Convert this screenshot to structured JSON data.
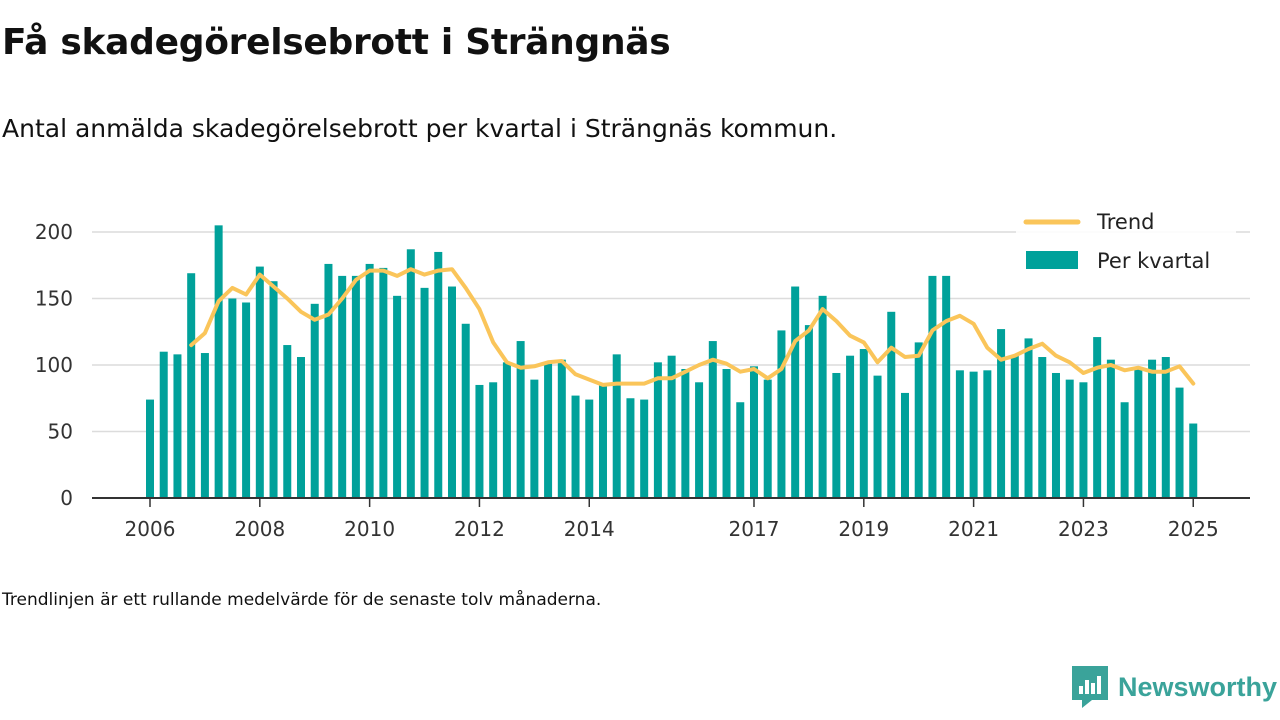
{
  "header": {
    "title": "Få skadegörelsebrott i Strängnäs",
    "subtitle": "Antal anmälda skadegörelsebrott per kvartal i Strängnäs kommun."
  },
  "footer": {
    "note": "Trendlinjen är ett rullande medelvärde för de senaste tolv månaderna.",
    "logo_text": "Newsworthy"
  },
  "colors": {
    "bar": "#00a19a",
    "trend": "#fac55a",
    "axis": "#333333",
    "grid": "#dcdcdc",
    "logo": "#3aa39a"
  },
  "chart_data": {
    "type": "bar",
    "title": "Få skadegörelsebrott i Strängnäs",
    "xlabel": "",
    "ylabel": "",
    "ylim": [
      0,
      200
    ],
    "yticks": [
      0,
      50,
      100,
      150,
      200
    ],
    "grid": true,
    "legend_position": "top-right",
    "x_start": {
      "year": 2006,
      "quarter": 1
    },
    "xticks": [
      {
        "label": "2006",
        "year": 2006
      },
      {
        "label": "2008",
        "year": 2008
      },
      {
        "label": "2010",
        "year": 2010
      },
      {
        "label": "2012",
        "year": 2012
      },
      {
        "label": "2014",
        "year": 2014
      },
      {
        "label": "2017",
        "year": 2017
      },
      {
        "label": "2019",
        "year": 2019
      },
      {
        "label": "2021",
        "year": 2021
      },
      {
        "label": "2023",
        "year": 2023
      },
      {
        "label": "2025",
        "year": 2025
      }
    ],
    "series": [
      {
        "name": "Per kvartal",
        "kind": "bar",
        "values": [
          74,
          110,
          108,
          169,
          109,
          205,
          150,
          147,
          174,
          163,
          115,
          106,
          146,
          176,
          167,
          167,
          176,
          173,
          152,
          187,
          158,
          185,
          159,
          131,
          85,
          87,
          102,
          118,
          89,
          102,
          104,
          77,
          74,
          85,
          108,
          75,
          74,
          102,
          107,
          97,
          87,
          118,
          97,
          72,
          99,
          89,
          126,
          159,
          130,
          152,
          94,
          107,
          112,
          92,
          140,
          79,
          117,
          167,
          167,
          96,
          95,
          96,
          127,
          107,
          120,
          106,
          94,
          89,
          87,
          121,
          104,
          72,
          98,
          104,
          106,
          83,
          56
        ]
      },
      {
        "name": "Trend",
        "kind": "line",
        "values": [
          null,
          null,
          null,
          115,
          124,
          148,
          158,
          153,
          168,
          159,
          150,
          140,
          134,
          138,
          150,
          164,
          171,
          171,
          167,
          172,
          168,
          171,
          172,
          158,
          142,
          117,
          102,
          98,
          99,
          102,
          103,
          93,
          89,
          85,
          86,
          86,
          86,
          90,
          90,
          95,
          100,
          104,
          101,
          95,
          97,
          90,
          97,
          118,
          126,
          142,
          133,
          122,
          117,
          102,
          113,
          106,
          107,
          126,
          133,
          137,
          131,
          113,
          104,
          107,
          112,
          116,
          107,
          102,
          94,
          98,
          100,
          96,
          98,
          95,
          95,
          99,
          86
        ]
      }
    ]
  }
}
